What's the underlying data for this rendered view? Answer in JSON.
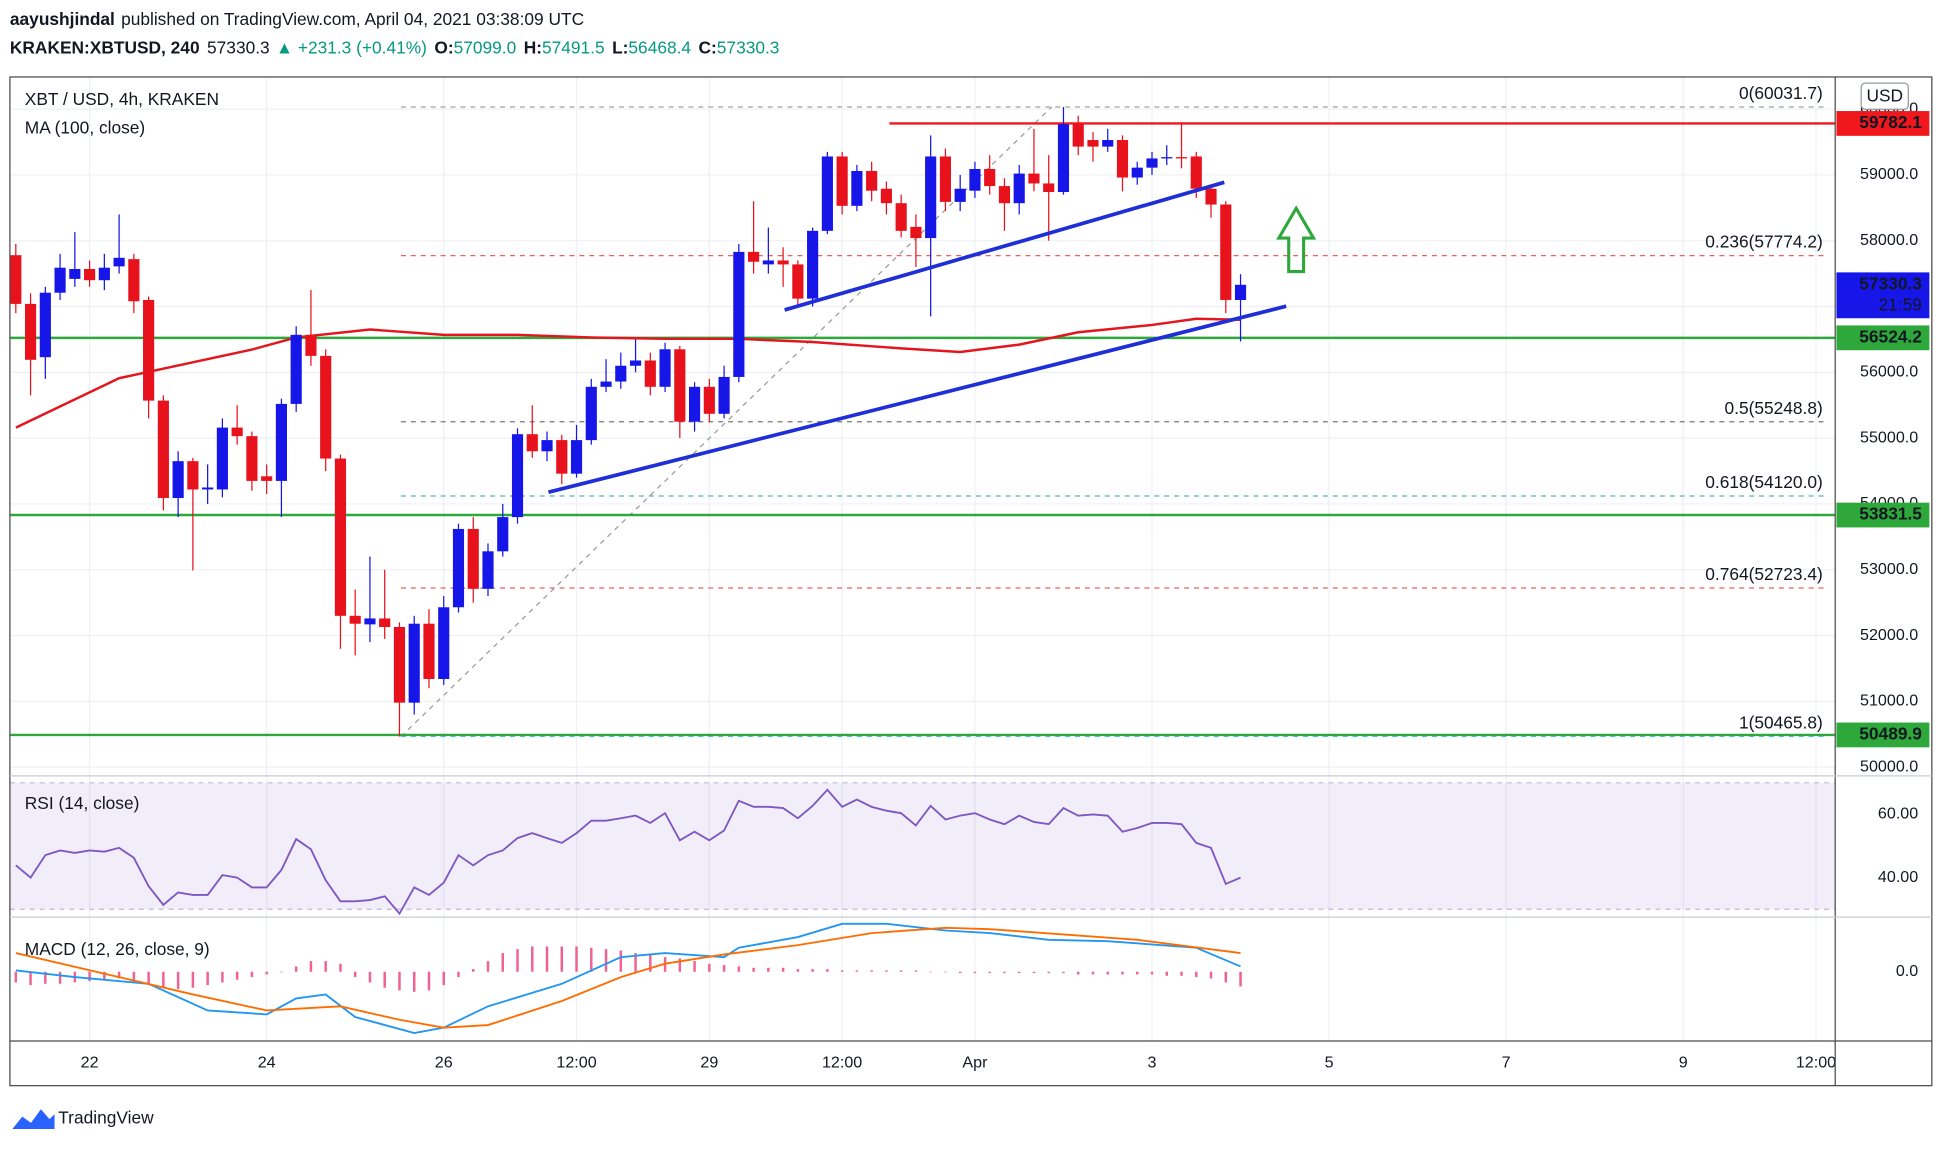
{
  "header": {
    "author": "aayushjindal",
    "published": "published on TradingView.com, April 04, 2021 03:38:09 UTC",
    "symbol": "KRAKEN:XBTUSD, 240",
    "last": "57330.3",
    "change": "▲ +231.3 (+0.41%)",
    "ohlc": [
      {
        "label": "O:",
        "value": "57099.0"
      },
      {
        "label": "H:",
        "value": "57491.5"
      },
      {
        "label": "L:",
        "value": "56468.4"
      },
      {
        "label": "C:",
        "value": "57330.3"
      }
    ]
  },
  "footer": {
    "brand": "TradingView"
  },
  "chart_data": [
    {
      "type": "candlestick",
      "title": "XBT / USD, 4h, KRAKEN",
      "currency": "USD",
      "indicator": "MA (100, close)",
      "grid": true,
      "up_color": "#1616e8",
      "down_color": "#e8121c",
      "xlim": [
        -0.4,
        123.3
      ],
      "xticks": [
        {
          "value": 5,
          "label": "22"
        },
        {
          "value": 17,
          "label": "24"
        },
        {
          "value": 29,
          "label": "26"
        },
        {
          "value": 38,
          "label": "12:00"
        },
        {
          "value": 47,
          "label": "29"
        },
        {
          "value": 56,
          "label": "12:00"
        },
        {
          "value": 65,
          "label": "Apr"
        },
        {
          "value": 77,
          "label": "3"
        },
        {
          "value": 89,
          "label": "5"
        },
        {
          "value": 101,
          "label": "7"
        },
        {
          "value": 113,
          "label": "9"
        },
        {
          "value": 122,
          "label": "12:00"
        }
      ],
      "ylim": [
        49868,
        60488
      ],
      "yticks": [
        {
          "value": 50000,
          "label": "50000.0"
        },
        {
          "value": 51000,
          "label": "51000.0"
        },
        {
          "value": 52000,
          "label": "52000.0"
        },
        {
          "value": 53000,
          "label": "53000.0"
        },
        {
          "value": 54000,
          "label": "54000.0"
        },
        {
          "value": 55000,
          "label": "55000.0"
        },
        {
          "value": 56000,
          "label": "56000.0"
        },
        {
          "value": 57000,
          "label": "57000.0"
        },
        {
          "value": 58000,
          "label": "58000.0"
        },
        {
          "value": 59000,
          "label": "59000.0"
        },
        {
          "value": 60000,
          "label": "60000.0"
        }
      ],
      "open": [
        57780,
        57040,
        56230,
        57210,
        57420,
        57570,
        57400,
        57610,
        57720,
        57100,
        55570,
        54090,
        54650,
        54220,
        54220,
        55160,
        55030,
        54420,
        54350,
        55520,
        56570,
        56250,
        54690,
        52300,
        52170,
        52260,
        52130,
        50980,
        52180,
        51340,
        52430,
        53620,
        52710,
        53280,
        53800,
        55060,
        54800,
        54970,
        54460,
        54970,
        55780,
        55860,
        56100,
        56180,
        55780,
        56350,
        55250,
        55780,
        55370,
        55930,
        57830,
        57640,
        57700,
        57640,
        57120,
        58150,
        59280,
        58530,
        59060,
        58790,
        58570,
        58210,
        58040,
        59280,
        58590,
        58760,
        59090,
        58830,
        58570,
        59020,
        58870,
        58740,
        59770,
        59530,
        59430,
        59530,
        58960,
        59110,
        59250,
        59270,
        59280,
        58790,
        58550,
        57099.0
      ],
      "high": [
        57950,
        57200,
        57300,
        57800,
        58130,
        57700,
        57800,
        58400,
        57800,
        57150,
        55650,
        54800,
        54700,
        54600,
        55300,
        55500,
        55100,
        54600,
        55600,
        56700,
        57250,
        56350,
        54750,
        52700,
        53200,
        53000,
        52200,
        52300,
        52400,
        52600,
        53700,
        53800,
        53400,
        54000,
        55150,
        55500,
        55100,
        55050,
        55200,
        55900,
        56200,
        56300,
        56500,
        56300,
        56450,
        56400,
        55850,
        55900,
        56100,
        57950,
        58600,
        58200,
        57900,
        57700,
        58200,
        59350,
        59350,
        59150,
        59200,
        58900,
        58700,
        58400,
        59600,
        59400,
        59000,
        59200,
        59300,
        58950,
        59150,
        59700,
        59300,
        60031.7,
        59900,
        59650,
        59700,
        59600,
        59200,
        59350,
        59450,
        59800,
        59350,
        58850,
        58600,
        57491.5
      ],
      "low": [
        56900,
        55650,
        55900,
        57100,
        57300,
        57300,
        57250,
        57500,
        56900,
        55300,
        53900,
        53800,
        52990,
        54000,
        54100,
        54900,
        54200,
        54150,
        53800,
        55400,
        56100,
        54500,
        51800,
        51700,
        51900,
        51950,
        50465.8,
        50800,
        51200,
        51250,
        52350,
        52500,
        52600,
        53200,
        53700,
        54700,
        54650,
        54300,
        54400,
        54900,
        55700,
        55750,
        56000,
        55650,
        55700,
        55000,
        55100,
        55250,
        55300,
        55850,
        57500,
        57500,
        57300,
        57000,
        57000,
        58100,
        58400,
        58450,
        58600,
        58400,
        58050,
        57600,
        56850,
        58450,
        58450,
        58650,
        58700,
        58150,
        58400,
        58750,
        58000,
        58700,
        59300,
        59200,
        59350,
        58750,
        58850,
        59000,
        59150,
        59100,
        58650,
        58350,
        56900,
        56468.4
      ],
      "close": [
        57040,
        56190,
        57210,
        57590,
        57570,
        57400,
        57590,
        57740,
        57080,
        55570,
        54090,
        54650,
        54220,
        54250,
        55160,
        55030,
        54350,
        54350,
        55520,
        56570,
        56250,
        54690,
        52300,
        52180,
        52260,
        52130,
        50980,
        52180,
        51340,
        52430,
        53620,
        52710,
        53280,
        53800,
        55060,
        54800,
        54970,
        54460,
        54970,
        55780,
        55860,
        56100,
        56180,
        55780,
        56350,
        55250,
        55780,
        55370,
        55930,
        57830,
        57680,
        57700,
        57640,
        57120,
        58150,
        59280,
        58530,
        59060,
        58760,
        58570,
        58150,
        58040,
        59280,
        58590,
        58790,
        59090,
        58830,
        58570,
        59020,
        58870,
        58740,
        59770,
        59430,
        59430,
        59530,
        58960,
        59110,
        59250,
        59270,
        59250,
        58790,
        58550,
        57100,
        57330.3
      ],
      "ma": {
        "color": "#e3161e",
        "x": [
          0,
          7,
          16,
          19,
          24,
          29,
          34,
          39,
          44,
          49,
          54,
          60,
          64,
          68,
          72,
          77,
          80,
          83
        ],
        "values": [
          55160,
          55910,
          56345,
          56530,
          56650,
          56570,
          56570,
          56530,
          56510,
          56510,
          56460,
          56365,
          56310,
          56420,
          56610,
          56720,
          56815,
          56800
        ]
      },
      "levels": [
        {
          "value": 59782.1,
          "color": "#f0181c",
          "start": 59.2
        },
        {
          "value": 56524.2,
          "color": "#2ea83a"
        },
        {
          "value": 53831.5,
          "color": "#2ea83a"
        },
        {
          "value": 50489.9,
          "color": "#2ea83a"
        }
      ],
      "fib": [
        {
          "value": 60031.7,
          "label": "0(60031.7)",
          "color": "#8a8a8a"
        },
        {
          "value": 57774.2,
          "label": "0.236(57774.2)",
          "color": "#e53935"
        },
        {
          "value": 55248.8,
          "label": "0.5(55248.8)",
          "color": "#555555"
        },
        {
          "value": 54120.0,
          "label": "0.618(54120.0)",
          "color": "#26a69a"
        },
        {
          "value": 52723.4,
          "label": "0.764(52723.4)",
          "color": "#e53935"
        },
        {
          "value": 50465.8,
          "label": "1(50465.8)",
          "color": "#42a5f5"
        }
      ],
      "fib_diagonal": {
        "color": "#9a9a9a",
        "x": [
          26.1,
          70.2
        ],
        "values": [
          50465.8,
          60031.7
        ]
      },
      "trendlines": [
        {
          "color": "#1f2fd8",
          "x": [
            52.1,
            81.9
          ],
          "values": [
            56948,
            58887
          ]
        },
        {
          "color": "#1f2fd8",
          "x": [
            36.1,
            86.1
          ],
          "values": [
            54179,
            57004
          ]
        }
      ],
      "last": {
        "value": 57330.3,
        "countdown": "21:59",
        "color": "#1616e8"
      }
    },
    {
      "type": "line",
      "title": "RSI (14, close)",
      "color": "#7e57c2",
      "band": [
        30,
        70
      ],
      "ylim": [
        27.5,
        72.2
      ],
      "yticks": [
        {
          "value": 40,
          "label": "40.00"
        },
        {
          "value": 60,
          "label": "60.00"
        }
      ],
      "values": [
        43.9,
        40.0,
        47.1,
        48.6,
        47.8,
        48.6,
        48.2,
        49.4,
        46.3,
        37.3,
        31.4,
        35.3,
        34.5,
        34.5,
        40.8,
        40.0,
        36.9,
        36.9,
        42.4,
        52.2,
        49.0,
        39.2,
        32.5,
        32.5,
        32.9,
        34.1,
        28.6,
        36.9,
        34.5,
        38.4,
        47.1,
        43.9,
        47.1,
        48.6,
        52.5,
        54.1,
        52.5,
        51.0,
        54.1,
        58.0,
        58.0,
        58.8,
        59.6,
        57.3,
        60.4,
        51.8,
        54.5,
        51.8,
        54.9,
        64.3,
        62.4,
        62.4,
        62.0,
        58.8,
        62.7,
        67.8,
        62.4,
        64.7,
        62.4,
        61.2,
        60.4,
        56.5,
        62.7,
        58.4,
        59.6,
        60.4,
        58.4,
        56.9,
        59.6,
        57.6,
        56.9,
        62.0,
        59.6,
        60.0,
        59.6,
        54.5,
        55.7,
        57.3,
        57.3,
        56.9,
        51.0,
        49.4,
        38.0,
        40.0
      ]
    },
    {
      "type": "line",
      "title": "MACD (12, 26, close, 9)",
      "ylim": [
        -1300,
        1025
      ],
      "yticks": [
        {
          "value": 0,
          "label": "0.0"
        }
      ],
      "histogram": {
        "color": "#f06292",
        "values": [
          -200,
          -250,
          -225,
          -225,
          -200,
          -175,
          -150,
          -125,
          -200,
          -250,
          -300,
          -325,
          -300,
          -250,
          -200,
          -150,
          -100,
          -50,
          0,
          100,
          200,
          200,
          150,
          -100,
          -200,
          -300,
          -350,
          -375,
          -350,
          -250,
          -100,
          50,
          200,
          350,
          425,
          475,
          475,
          475,
          475,
          450,
          425,
          400,
          350,
          325,
          275,
          250,
          200,
          150,
          125,
          100,
          75,
          75,
          75,
          50,
          50,
          50,
          25,
          25,
          25,
          25,
          25,
          25,
          0,
          0,
          -25,
          -25,
          -25,
          -25,
          -25,
          -25,
          -25,
          -25,
          -50,
          -50,
          -50,
          -50,
          -50,
          -50,
          -75,
          -75,
          -100,
          -125,
          -200,
          -275
        ]
      },
      "series": [
        {
          "color": "#2196f3",
          "x": [
            0,
            4,
            9,
            13,
            17,
            19,
            21,
            23,
            27,
            29,
            32,
            37,
            41,
            44,
            48,
            49,
            53,
            56,
            59,
            63,
            66,
            70,
            74,
            80,
            83
          ],
          "values": [
            25,
            -100,
            -225,
            -725,
            -800,
            -500,
            -425,
            -850,
            -1150,
            -1050,
            -650,
            -225,
            275,
            350,
            275,
            450,
            650,
            900,
            900,
            775,
            725,
            600,
            575,
            450,
            100
          ]
        },
        {
          "color": "#ff6d00",
          "x": [
            0,
            7,
            12,
            17,
            22,
            26,
            29,
            32,
            37,
            41,
            44,
            48,
            53,
            58,
            63,
            66,
            71,
            76,
            83
          ],
          "values": [
            350,
            -100,
            -425,
            -725,
            -650,
            -900,
            -1050,
            -1000,
            -550,
            -100,
            150,
            325,
            500,
            725,
            825,
            800,
            700,
            600,
            350
          ]
        }
      ]
    }
  ]
}
